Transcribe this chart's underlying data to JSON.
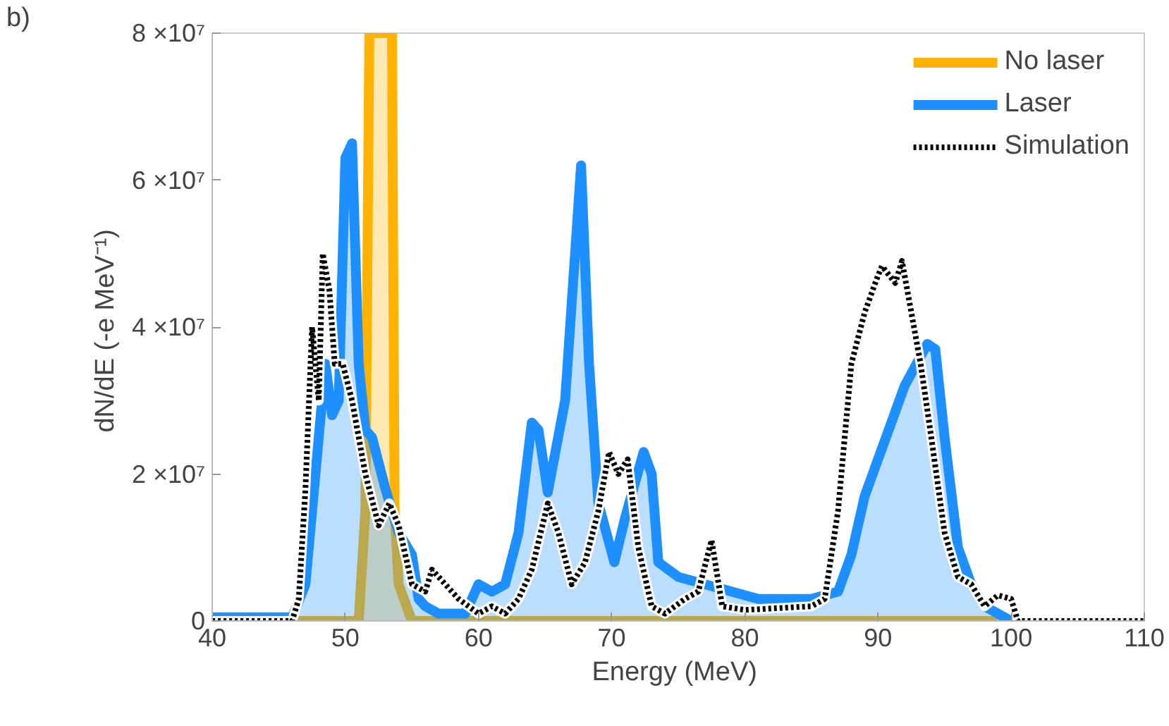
{
  "chart_data": {
    "type": "area",
    "xlabel": "Energy  (MeV)",
    "ylabel": "dN/dE  (-e MeV⁻¹)",
    "annotations": [
      "b)"
    ],
    "xlim": [
      40,
      110
    ],
    "xticks": [
      40,
      50,
      60,
      70,
      80,
      90,
      100,
      110
    ],
    "ylim": [
      0,
      80000000
    ],
    "yticks": [
      {
        "value": 0,
        "label": "0"
      },
      {
        "value": 20000000,
        "label": "2 ×10⁷"
      },
      {
        "value": 40000000,
        "label": "4 ×10⁷"
      },
      {
        "value": 60000000,
        "label": "6 ×10⁷"
      },
      {
        "value": 80000000,
        "label": "8 ×10⁷"
      }
    ],
    "grid": false,
    "legend": "top right",
    "series": [
      {
        "name": "No laser",
        "color": "#ffb300",
        "line_style": "solid",
        "x": [
          46,
          51,
          51.5,
          51.8,
          53.5,
          53.7,
          54,
          55,
          99
        ],
        "values": [
          0,
          0,
          15000000,
          80000000,
          80000000,
          15000000,
          5000000,
          0,
          0
        ]
      },
      {
        "name": "Laser",
        "color": "#1e8fff",
        "line_style": "solid",
        "x": [
          40,
          46,
          47,
          47.5,
          48,
          48.5,
          49,
          49.5,
          50,
          50.5,
          51,
          51.5,
          52,
          53,
          54,
          55,
          55.5,
          56,
          57,
          59,
          60,
          61,
          62,
          63,
          64,
          64.5,
          65.2,
          66.5,
          67.7,
          68.3,
          69,
          70.2,
          71,
          72.4,
          73,
          73.5,
          75,
          77,
          78,
          79,
          81,
          85,
          87,
          88,
          89,
          90,
          91,
          92,
          93.7,
          94.3,
          95,
          96,
          97,
          98,
          100,
          110
        ],
        "values": [
          500000,
          500000,
          5000000,
          15000000,
          25000000,
          35000000,
          28000000,
          30000000,
          63000000,
          65000000,
          35000000,
          26000000,
          25000000,
          18000000,
          12000000,
          9000000,
          3000000,
          2000000,
          1000000,
          1000000,
          5000000,
          4000000,
          5000000,
          12000000,
          27000000,
          26000000,
          17500000,
          30000000,
          62000000,
          35000000,
          16000000,
          8000000,
          14000000,
          23000000,
          20000000,
          8000000,
          6000000,
          5000000,
          4500000,
          4000000,
          3000000,
          3000000,
          4000000,
          9000000,
          17000000,
          22000000,
          27000000,
          32000000,
          37700000,
          37000000,
          25000000,
          10000000,
          5000000,
          2000000,
          0,
          0
        ]
      },
      {
        "name": "Simulation",
        "color": "#000000",
        "type": "line",
        "line_style": "dotted",
        "x": [
          40,
          46,
          46.5,
          47,
          47.5,
          48,
          48.3,
          48.8,
          49.2,
          49.8,
          50.5,
          51.5,
          52.5,
          53.3,
          54,
          55,
          56,
          56.5,
          57.5,
          58.5,
          60,
          61,
          62,
          63,
          64,
          65.2,
          66,
          67,
          68,
          69,
          69.8,
          70.5,
          71.2,
          72,
          73,
          74,
          75.5,
          76.5,
          77.5,
          78.3,
          80,
          85,
          86,
          87,
          88,
          89,
          90,
          90.3,
          91.3,
          91.8,
          92.5,
          93.2,
          94,
          95,
          96,
          97,
          98,
          99,
          100,
          100.5,
          110
        ],
        "values": [
          0,
          0,
          3000000,
          18000000,
          40000000,
          30000000,
          50000000,
          45000000,
          35000000,
          35000000,
          30000000,
          20000000,
          13000000,
          16000000,
          13000000,
          5000000,
          4000000,
          7000000,
          5000000,
          3000000,
          1000000,
          2000000,
          1000000,
          3000000,
          7000000,
          16000000,
          12000000,
          5000000,
          8000000,
          15000000,
          23000000,
          20000000,
          22000000,
          10000000,
          2000000,
          1000000,
          3000000,
          4000000,
          11000000,
          2000000,
          1500000,
          2000000,
          3000000,
          15000000,
          35000000,
          42000000,
          47000000,
          48300000,
          46000000,
          49000000,
          42000000,
          35000000,
          25000000,
          12000000,
          6000000,
          5000000,
          2000000,
          3500000,
          3000000,
          0,
          0
        ]
      }
    ]
  }
}
